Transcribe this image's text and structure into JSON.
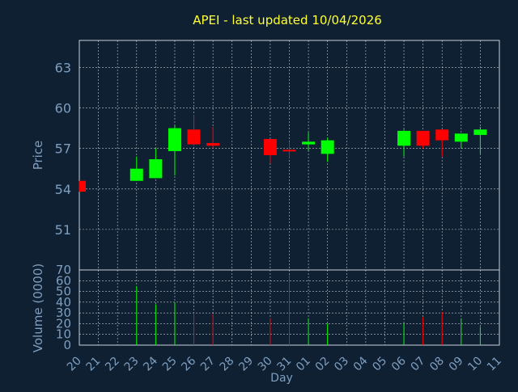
{
  "chart_data": {
    "type": "candlestick",
    "title": "APEI - last updated 10/04/2026",
    "xlabel": "Day",
    "price_panel": {
      "ylabel": "Price",
      "ylim": [
        48,
        65
      ],
      "yticks": [
        51,
        54,
        57,
        60,
        63
      ]
    },
    "volume_panel": {
      "ylabel": "Volume (0000)",
      "ylim": [
        0,
        70
      ],
      "yticks": [
        0,
        10,
        20,
        30,
        40,
        50,
        60,
        70
      ]
    },
    "x_ticks": [
      "20",
      "21",
      "22",
      "23",
      "24",
      "25",
      "26",
      "27",
      "28",
      "29",
      "30",
      "31",
      "01",
      "02",
      "03",
      "04",
      "05",
      "06",
      "07",
      "08",
      "09",
      "10",
      "11"
    ],
    "grid": true,
    "colors": {
      "background": "#0f2033",
      "title": "#ffff33",
      "axis_text": "#7f9fbf",
      "grid": "#ffffff",
      "up": "#00ff00",
      "down": "#ff0000"
    },
    "candles": [
      {
        "x": "20",
        "open": 54.6,
        "high": 54.6,
        "low": 53.8,
        "close": 53.8,
        "volume": 0
      },
      {
        "x": "23",
        "open": 54.6,
        "high": 56.4,
        "low": 54.6,
        "close": 55.5,
        "volume": 55
      },
      {
        "x": "24",
        "open": 54.8,
        "high": 57.0,
        "low": 54.8,
        "close": 56.2,
        "volume": 38
      },
      {
        "x": "25",
        "open": 56.8,
        "high": 58.7,
        "low": 55.0,
        "close": 58.5,
        "volume": 40
      },
      {
        "x": "26",
        "open": 58.4,
        "high": 59.5,
        "low": 57.2,
        "close": 57.3,
        "volume": 30
      },
      {
        "x": "27",
        "open": 57.4,
        "high": 58.6,
        "low": 57.0,
        "close": 57.2,
        "volume": 29
      },
      {
        "x": "30",
        "open": 57.7,
        "high": 57.7,
        "low": 55.9,
        "close": 56.5,
        "volume": 25
      },
      {
        "x": "31",
        "open": 56.9,
        "high": 57.5,
        "low": 56.3,
        "close": 56.8,
        "volume": 65
      },
      {
        "x": "01",
        "open": 57.3,
        "high": 58.2,
        "low": 56.8,
        "close": 57.5,
        "volume": 25
      },
      {
        "x": "02",
        "open": 56.6,
        "high": 57.8,
        "low": 56.0,
        "close": 57.6,
        "volume": 20
      },
      {
        "x": "06",
        "open": 57.2,
        "high": 58.4,
        "low": 56.4,
        "close": 58.3,
        "volume": 20
      },
      {
        "x": "07",
        "open": 58.3,
        "high": 58.3,
        "low": 57.0,
        "close": 57.2,
        "volume": 26
      },
      {
        "x": "08",
        "open": 58.4,
        "high": 58.4,
        "low": 56.4,
        "close": 57.6,
        "volume": 31
      },
      {
        "x": "09",
        "open": 57.5,
        "high": 58.1,
        "low": 57.0,
        "close": 58.1,
        "volume": 25
      },
      {
        "x": "10",
        "open": 58.0,
        "high": 58.6,
        "low": 56.6,
        "close": 58.4,
        "volume": 17
      }
    ]
  }
}
